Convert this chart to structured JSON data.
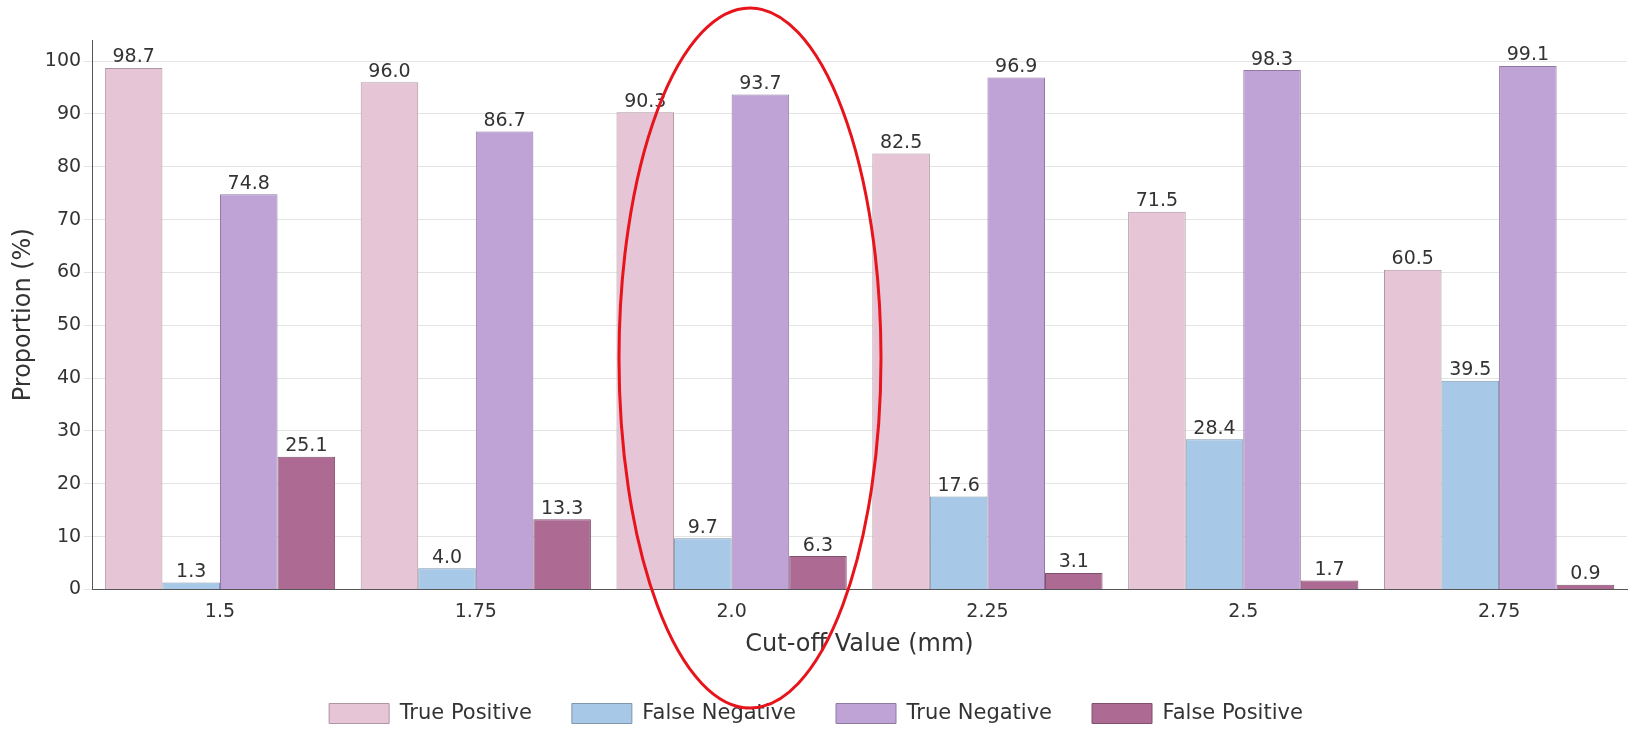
{
  "chart_data": {
    "type": "bar",
    "xlabel": "Cut-off Value (mm)",
    "ylabel": "Proportion (%)",
    "categories": [
      "1.5",
      "1.75",
      "2.0",
      "2.25",
      "2.5",
      "2.75"
    ],
    "series": [
      {
        "name": "True Positive",
        "color": "#e6c6d6",
        "values": [
          98.7,
          96.0,
          90.3,
          82.5,
          71.5,
          60.5
        ],
        "value_labels": [
          "98.7",
          "96.0",
          "90.3",
          "82.5",
          "71.5",
          "60.5"
        ]
      },
      {
        "name": "False Negative",
        "color": "#a8c8e8",
        "values": [
          1.3,
          4.0,
          9.7,
          17.6,
          28.4,
          39.5
        ],
        "value_labels": [
          "1.3",
          "4.0",
          "9.7",
          "17.6",
          "28.4",
          "39.5"
        ]
      },
      {
        "name": "True Negative",
        "color": "#c0a3d6",
        "values": [
          74.8,
          86.7,
          93.7,
          96.9,
          98.3,
          99.1
        ],
        "value_labels": [
          "74.8",
          "86.7",
          "93.7",
          "96.9",
          "98.3",
          "99.1"
        ]
      },
      {
        "name": "False Positive",
        "color": "#ad6b93",
        "values": [
          25.1,
          13.3,
          6.3,
          3.1,
          1.7,
          0.9
        ],
        "value_labels": [
          "25.1",
          "13.3",
          "6.3",
          "3.1",
          "1.7",
          "0.9"
        ]
      }
    ],
    "ylim": [
      0,
      104
    ],
    "yticks": [
      0,
      10,
      20,
      30,
      40,
      50,
      60,
      70,
      80,
      90,
      100
    ],
    "grid": "y",
    "legend": "bottom"
  }
}
